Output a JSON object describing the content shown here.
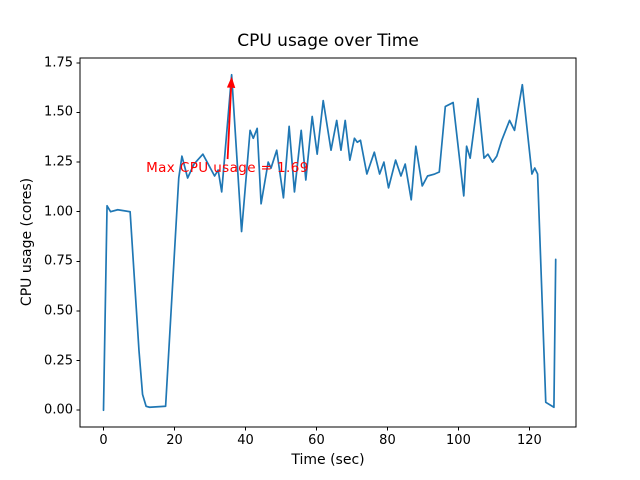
{
  "colors": {
    "background": "#ffffff",
    "spine": "#000000",
    "text": "#000000",
    "line": "#1f77b4",
    "annotation": "#ff0000"
  },
  "chart_data": {
    "type": "line",
    "title": "CPU usage over Time",
    "xlabel": "Time (sec)",
    "ylabel": "CPU usage (cores)",
    "grid": false,
    "legend": null,
    "xlim": [
      -6.62,
      133.12
    ],
    "ylim": [
      -0.0845,
      1.7745
    ],
    "xticks": [
      0,
      20,
      40,
      60,
      80,
      100,
      120
    ],
    "xtick_labels": [
      "0",
      "20",
      "40",
      "60",
      "80",
      "100",
      "120"
    ],
    "yticks": [
      0.0,
      0.25,
      0.5,
      0.75,
      1.0,
      1.25,
      1.5,
      1.75
    ],
    "ytick_labels": [
      "0.00",
      "0.25",
      "0.50",
      "0.75",
      "1.00",
      "1.25",
      "1.50",
      "1.75"
    ],
    "series": [
      {
        "name": "CPU usage",
        "color": "#1f77b4",
        "x": [
          0,
          1,
          2,
          4,
          7.5,
          10,
          11,
          12,
          13,
          17.5,
          21.2,
          22.1,
          23.7,
          25.5,
          28,
          31.3,
          32.3,
          33.3,
          36.1,
          38.9,
          41.3,
          42.2,
          43.3,
          44.4,
          46.4,
          47.2,
          48.8,
          50.7,
          52.3,
          53.8,
          55.7,
          57,
          58.8,
          60.2,
          61.9,
          64.1,
          65.7,
          66.9,
          68.1,
          69.4,
          70.7,
          71.5,
          72.4,
          74.2,
          76.3,
          77.8,
          79,
          80.3,
          82.3,
          83.8,
          85,
          86.7,
          88,
          89.8,
          91.3,
          93.3,
          94.6,
          96.3,
          98.5,
          101.5,
          102.3,
          103.3,
          105.5,
          107.2,
          108.3,
          109.6,
          110.8,
          112.2,
          114.4,
          115.8,
          118,
          120.7,
          121.5,
          122.3,
          124.6,
          126.9,
          127.4
        ],
        "y": [
          0.0,
          1.03,
          1.0,
          1.01,
          1.0,
          0.3,
          0.08,
          0.02,
          0.015,
          0.02,
          1.17,
          1.28,
          1.17,
          1.24,
          1.29,
          1.18,
          1.21,
          1.1,
          1.69,
          0.9,
          1.41,
          1.37,
          1.42,
          1.04,
          1.25,
          1.22,
          1.31,
          1.07,
          1.43,
          1.1,
          1.41,
          1.16,
          1.48,
          1.29,
          1.56,
          1.31,
          1.46,
          1.31,
          1.46,
          1.26,
          1.37,
          1.35,
          1.36,
          1.19,
          1.3,
          1.19,
          1.25,
          1.12,
          1.26,
          1.18,
          1.24,
          1.06,
          1.33,
          1.13,
          1.18,
          1.19,
          1.2,
          1.53,
          1.55,
          1.08,
          1.33,
          1.27,
          1.57,
          1.27,
          1.29,
          1.25,
          1.28,
          1.36,
          1.46,
          1.41,
          1.64,
          1.19,
          1.22,
          1.19,
          0.04,
          0.015,
          0.76
        ]
      }
    ],
    "annotation": {
      "text": "Max CPU usage = 1.69",
      "color": "#ff0000",
      "xy": [
        36.1,
        1.69
      ],
      "xytext": [
        12,
        1.2
      ],
      "max_value": 1.69
    }
  }
}
